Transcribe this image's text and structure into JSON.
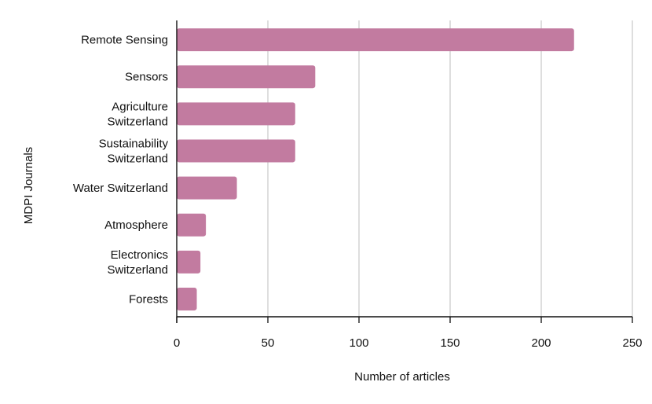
{
  "chart_data": {
    "type": "bar",
    "orientation": "horizontal",
    "categories": [
      "Remote Sensing",
      "Sensors",
      "Agriculture Switzerland",
      "Sustainability Switzerland",
      "Water Switzerland",
      "Atmosphere",
      "Electronics Switzerland",
      "Forests"
    ],
    "category_lines": [
      [
        "Remote Sensing"
      ],
      [
        "Sensors"
      ],
      [
        "Agriculture",
        "Switzerland"
      ],
      [
        "Sustainability",
        "Switzerland"
      ],
      [
        "Water Switzerland"
      ],
      [
        "Atmosphere"
      ],
      [
        "Electronics",
        "Switzerland"
      ],
      [
        "Forests"
      ]
    ],
    "values": [
      218,
      76,
      65,
      65,
      33,
      16,
      13,
      11
    ],
    "xlabel": "Number of articles",
    "ylabel": "MDPI Journals",
    "xlim": [
      0,
      250
    ],
    "xticks": [
      "0",
      "50",
      "100",
      "150",
      "200",
      "250"
    ],
    "grid": "vertical",
    "legend": "none",
    "bar_color": "#c27ba0",
    "grid_color": "#cccccc",
    "axis_color": "#111111"
  }
}
